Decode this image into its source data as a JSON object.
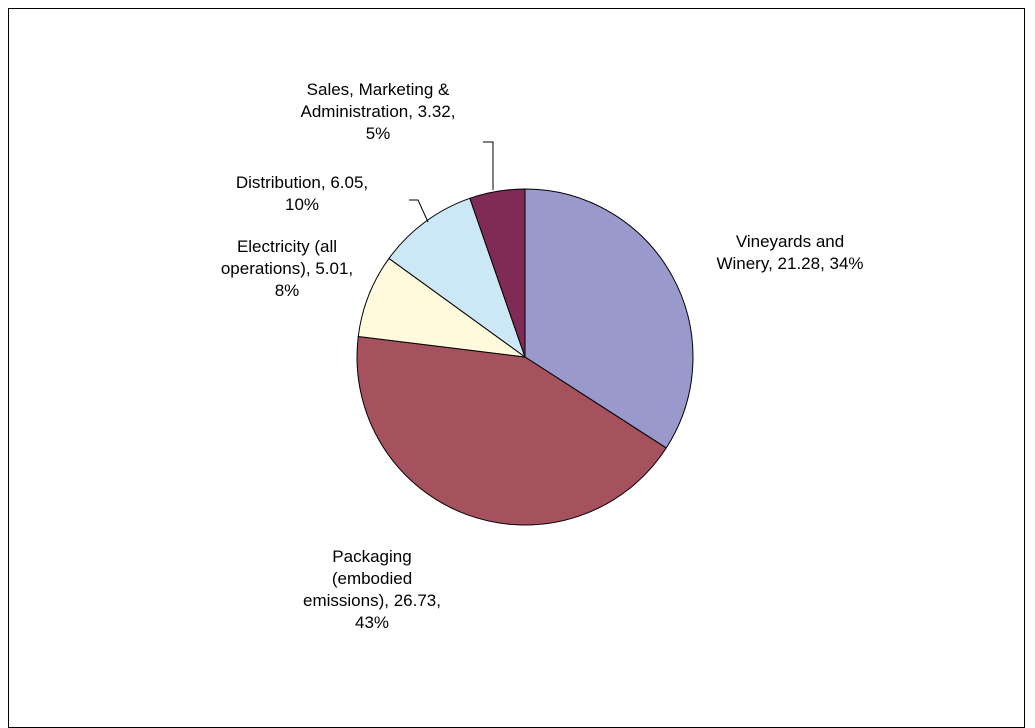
{
  "chart_data": {
    "type": "pie",
    "title": "",
    "slices": [
      {
        "name": "Vineyards and Winery",
        "value": 21.28,
        "percent": "34%",
        "color": "#9999cc",
        "label_lines": [
          "Vineyards and",
          "Winery, 21.28, 34%"
        ]
      },
      {
        "name": "Packaging (embodied emissions)",
        "value": 26.73,
        "percent": "43%",
        "color": "#a5515e",
        "label_lines": [
          "Packaging",
          "(embodied",
          "emissions), 26.73,",
          "43%"
        ]
      },
      {
        "name": "Electricity (all operations)",
        "value": 5.01,
        "percent": "8%",
        "color": "#fffadc",
        "label_lines": [
          "Electricity (all",
          "operations), 5.01,",
          "8%"
        ]
      },
      {
        "name": "Distribution",
        "value": 6.05,
        "percent": "10%",
        "color": "#cce8f7",
        "label_lines": [
          "Distribution, 6.05,",
          "10%"
        ]
      },
      {
        "name": "Sales, Marketing & Administration",
        "value": 3.32,
        "percent": "5%",
        "color": "#7f2b55",
        "label_lines": [
          "Sales, Marketing &",
          "Administration, 3.32,",
          "5%"
        ]
      }
    ],
    "legend": "none",
    "edge_color": "#000000"
  }
}
